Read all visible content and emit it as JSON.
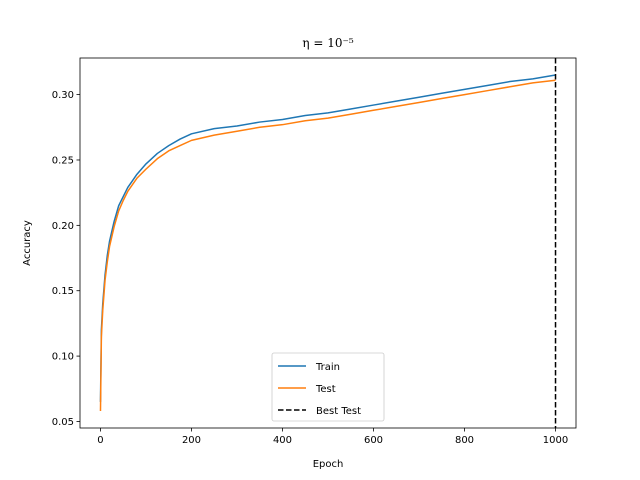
{
  "chart_data": {
    "type": "line",
    "title": "η = 10⁻⁵",
    "xlabel": "Epoch",
    "ylabel": "Accuracy",
    "xlim": [
      -45,
      1045
    ],
    "ylim": [
      0.045,
      0.328
    ],
    "xticks": [
      0,
      200,
      400,
      600,
      800,
      1000
    ],
    "xtick_labels": [
      "0",
      "200",
      "400",
      "600",
      "800",
      "1000"
    ],
    "yticks": [
      0.05,
      0.1,
      0.15,
      0.2,
      0.25,
      0.3
    ],
    "ytick_labels": [
      "0.05",
      "0.10",
      "0.15",
      "0.20",
      "0.25",
      "0.30"
    ],
    "grid": false,
    "legend_position": "bottom-center",
    "series": [
      {
        "name": "Train",
        "color": "#1f77b4",
        "x": [
          0,
          2,
          5,
          10,
          15,
          20,
          30,
          40,
          50,
          60,
          70,
          80,
          100,
          125,
          150,
          175,
          200,
          250,
          300,
          350,
          400,
          450,
          500,
          550,
          600,
          650,
          700,
          750,
          800,
          850,
          900,
          950,
          1000
        ],
        "y": [
          0.065,
          0.12,
          0.14,
          0.162,
          0.177,
          0.188,
          0.203,
          0.215,
          0.222,
          0.229,
          0.234,
          0.239,
          0.247,
          0.255,
          0.261,
          0.266,
          0.27,
          0.274,
          0.276,
          0.279,
          0.281,
          0.284,
          0.286,
          0.289,
          0.292,
          0.295,
          0.298,
          0.301,
          0.304,
          0.307,
          0.31,
          0.312,
          0.315
        ]
      },
      {
        "name": "Test",
        "color": "#ff7f0e",
        "x": [
          0,
          2,
          5,
          10,
          15,
          20,
          30,
          40,
          50,
          60,
          70,
          80,
          100,
          125,
          150,
          175,
          200,
          250,
          300,
          350,
          400,
          450,
          500,
          550,
          600,
          650,
          700,
          750,
          800,
          850,
          900,
          950,
          1000
        ],
        "y": [
          0.058,
          0.115,
          0.135,
          0.158,
          0.172,
          0.184,
          0.199,
          0.211,
          0.219,
          0.226,
          0.231,
          0.236,
          0.243,
          0.251,
          0.257,
          0.261,
          0.265,
          0.269,
          0.272,
          0.275,
          0.277,
          0.28,
          0.282,
          0.285,
          0.288,
          0.291,
          0.294,
          0.297,
          0.3,
          0.303,
          0.306,
          0.309,
          0.311
        ]
      },
      {
        "name": "Best Test",
        "color": "#000000",
        "type": "vline",
        "x": 1000,
        "dashed": true
      }
    ]
  }
}
